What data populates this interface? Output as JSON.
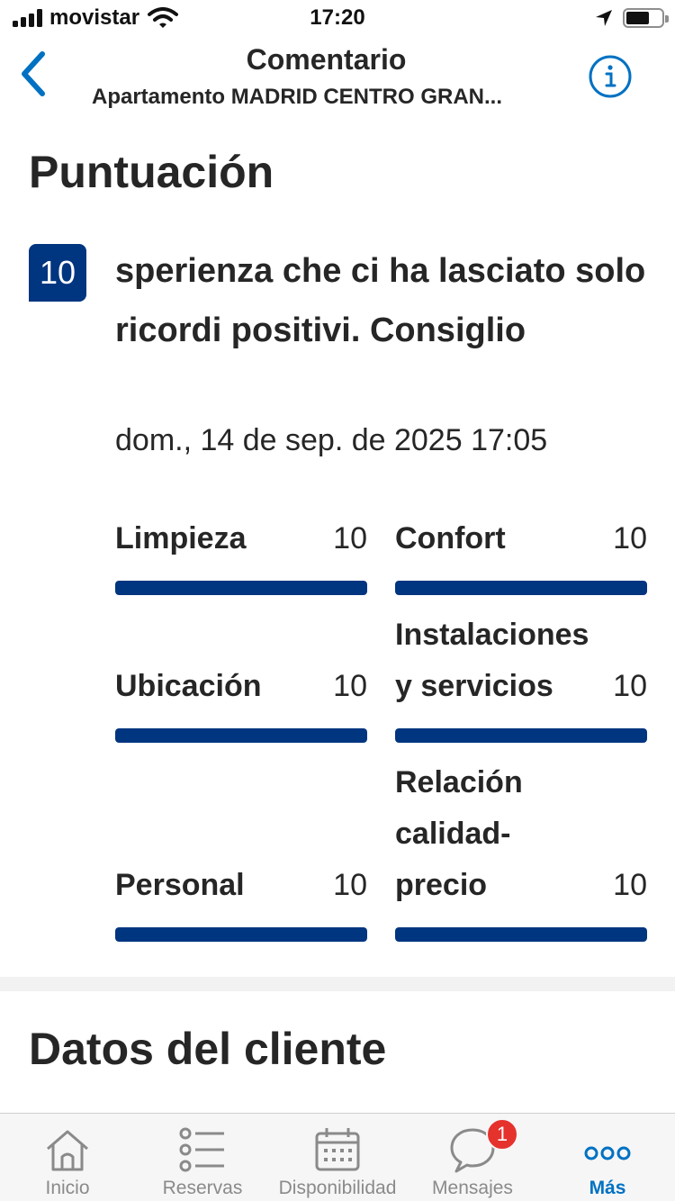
{
  "status_bar": {
    "carrier": "movistar",
    "time": "17:20",
    "battery_level": 0.65
  },
  "header": {
    "title": "Comentario",
    "subtitle": "Apartamento MADRID CENTRO GRAN...",
    "back_icon": "chevron-left-icon",
    "info_icon": "info-icon"
  },
  "score_section": {
    "title": "Puntuación",
    "overall_score": "10",
    "review_text": "sperienza che ci ha lasciato solo ricordi positivi. Consiglio",
    "date": "dom., 14 de sep. de 2025 17:05",
    "scale_max": 10,
    "categories": [
      {
        "label": "Limpieza",
        "score": "10",
        "value": 10
      },
      {
        "label": "Confort",
        "score": "10",
        "value": 10
      },
      {
        "label": "Ubicación",
        "score": "10",
        "value": 10
      },
      {
        "label": "Instalaciones y servicios",
        "score": "10",
        "value": 10
      },
      {
        "label": "Personal",
        "score": "10",
        "value": 10
      },
      {
        "label": "Relación calidad-precio",
        "score": "10",
        "value": 10
      }
    ]
  },
  "client_section": {
    "title": "Datos del cliente"
  },
  "tab_bar": {
    "tabs": [
      {
        "label": "Inicio",
        "icon": "home-icon"
      },
      {
        "label": "Reservas",
        "icon": "list-icon"
      },
      {
        "label": "Disponibilidad",
        "icon": "calendar-icon"
      },
      {
        "label": "Mensajes",
        "icon": "chat-bubble-icon"
      },
      {
        "label": "Más",
        "icon": "more-dots-icon"
      }
    ],
    "active_index": 4,
    "messages_badge": "1"
  },
  "colors": {
    "brand_blue": "#003580",
    "accent_blue": "#0071c2",
    "badge_red": "#e5322d"
  }
}
